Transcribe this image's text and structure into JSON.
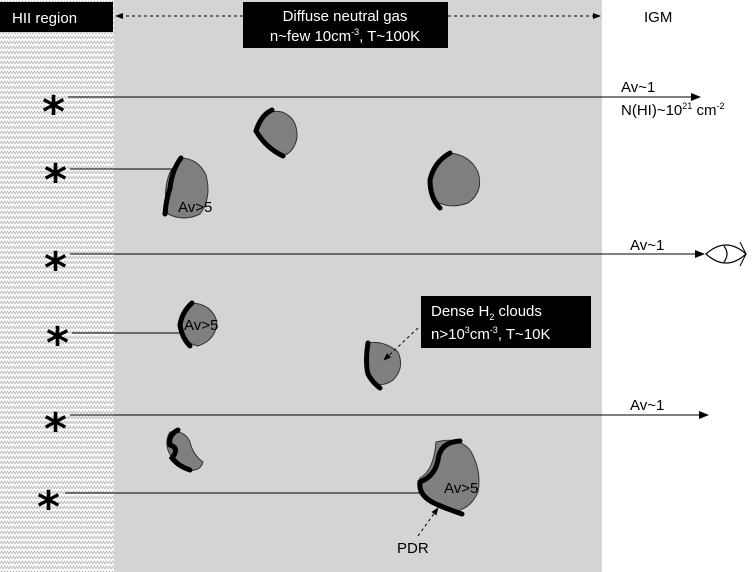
{
  "regions": {
    "hii_label": "HII region",
    "diffuse_title": "Diffuse neutral gas",
    "diffuse_sub_a": "n~few 10cm",
    "diffuse_sub_exp": "-3",
    "diffuse_sub_b": ", T~100K",
    "igm_label": "IGM"
  },
  "sightlines": {
    "av1_label": "Av~1",
    "nhi_a": "N(HI)~10",
    "nhi_exp": "21",
    "nhi_b": " cm",
    "nhi_exp2": "-2"
  },
  "clouds": {
    "av5_label": "Av>5",
    "dense_title_a": "Dense H",
    "dense_title_sub": "2",
    "dense_title_b": " clouds",
    "dense_sub_a": "n>10",
    "dense_sub_exp": "3",
    "dense_sub_b": "cm",
    "dense_sub_exp2": "-3",
    "dense_sub_c": ", T~10K",
    "pdr_label": "PDR"
  },
  "icons": {
    "star": "star-icon",
    "eye": "eye-icon"
  },
  "colors": {
    "diffuse_fill": "#d4d4d4",
    "cloud_fill": "#7f7f7f",
    "label_box": "#000000"
  }
}
